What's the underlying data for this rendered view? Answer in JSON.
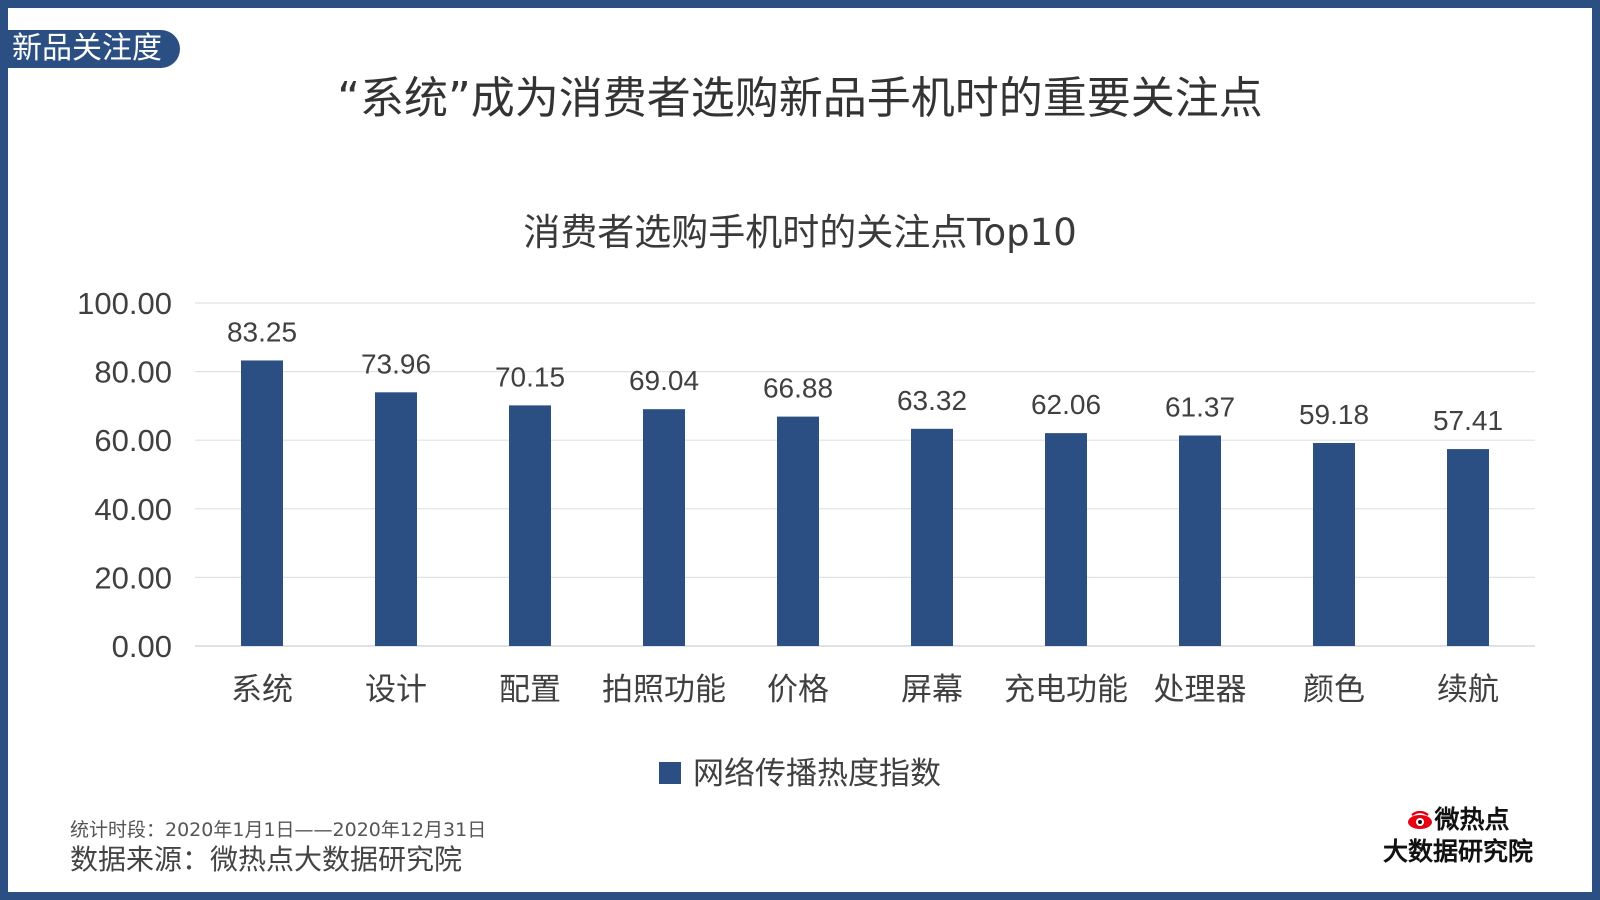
{
  "header": {
    "tag": "新品关注度",
    "title": "“系统”成为消费者选购新品手机时的重要关注点"
  },
  "chart_data": {
    "type": "bar",
    "title": "消费者选购手机时的关注点Top10",
    "categories": [
      "系统",
      "设计",
      "配置",
      "拍照功能",
      "价格",
      "屏幕",
      "充电功能",
      "处理器",
      "颜色",
      "续航"
    ],
    "series": [
      {
        "name": "网络传播热度指数",
        "values": [
          83.25,
          73.96,
          70.15,
          69.04,
          66.88,
          63.32,
          62.06,
          61.37,
          59.18,
          57.41
        ],
        "labels": [
          "83.25",
          "73.96",
          "70.15",
          "69.04",
          "66.88",
          "63.32",
          "62.06",
          "61.37",
          "59.18",
          "57.41"
        ]
      }
    ],
    "ylim": [
      0,
      100
    ],
    "yticks": [
      "0.00",
      "20.00",
      "40.00",
      "60.00",
      "80.00",
      "100.00"
    ],
    "ytick_values": [
      0,
      20,
      40,
      60,
      80,
      100
    ],
    "grid": true,
    "legend": "bottom",
    "bar_color": "#2B4F82"
  },
  "footer": {
    "period": "统计时段：2020年1月1日——2020年12月31日",
    "source": "数据来源：微热点大数据研究院",
    "brand_line1": "微热点",
    "brand_line2": "大数据研究院"
  },
  "colors": {
    "frame": "#2B4F82",
    "bar": "#2B4F82",
    "brand_accent": "#E60012"
  }
}
